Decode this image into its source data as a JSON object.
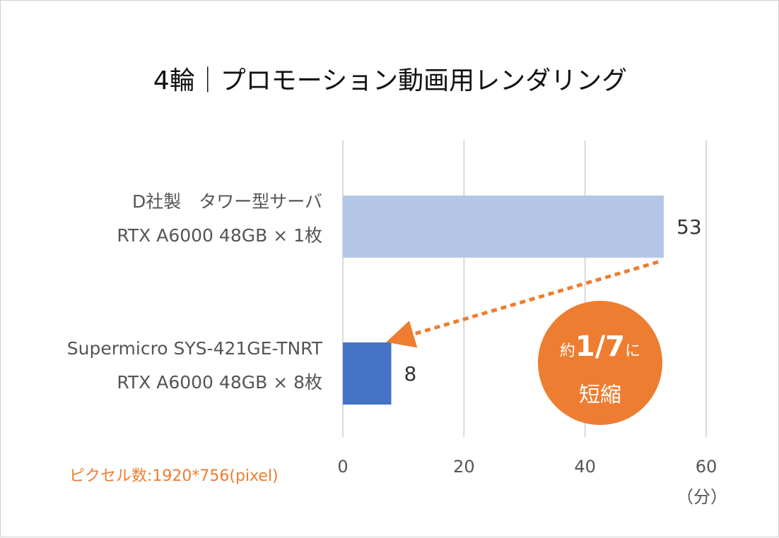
{
  "chart_data": {
    "type": "bar",
    "orientation": "horizontal",
    "title": "4輪｜プロモーション動画用レンダリング",
    "categories": [
      {
        "line1": "D社製　タワー型サーバ",
        "line2": "RTX A6000 48GB × 1枚"
      },
      {
        "line1": "Supermicro SYS-421GE-TNRT",
        "line2": "RTX A6000 48GB × 8枚"
      }
    ],
    "values": [
      53,
      8
    ],
    "colors": [
      "#B4C7E7",
      "#4472C4"
    ],
    "xlim": [
      0,
      60
    ],
    "xticks": [
      0,
      20,
      40,
      60
    ],
    "xunit": "（分）",
    "grid": true,
    "annotation": {
      "prefix": "約",
      "ratio": "1/7",
      "suffix": "に",
      "line2": "短縮",
      "color": "#ED7D31"
    }
  },
  "note": "ピクセル数:1920*756(pixel)"
}
